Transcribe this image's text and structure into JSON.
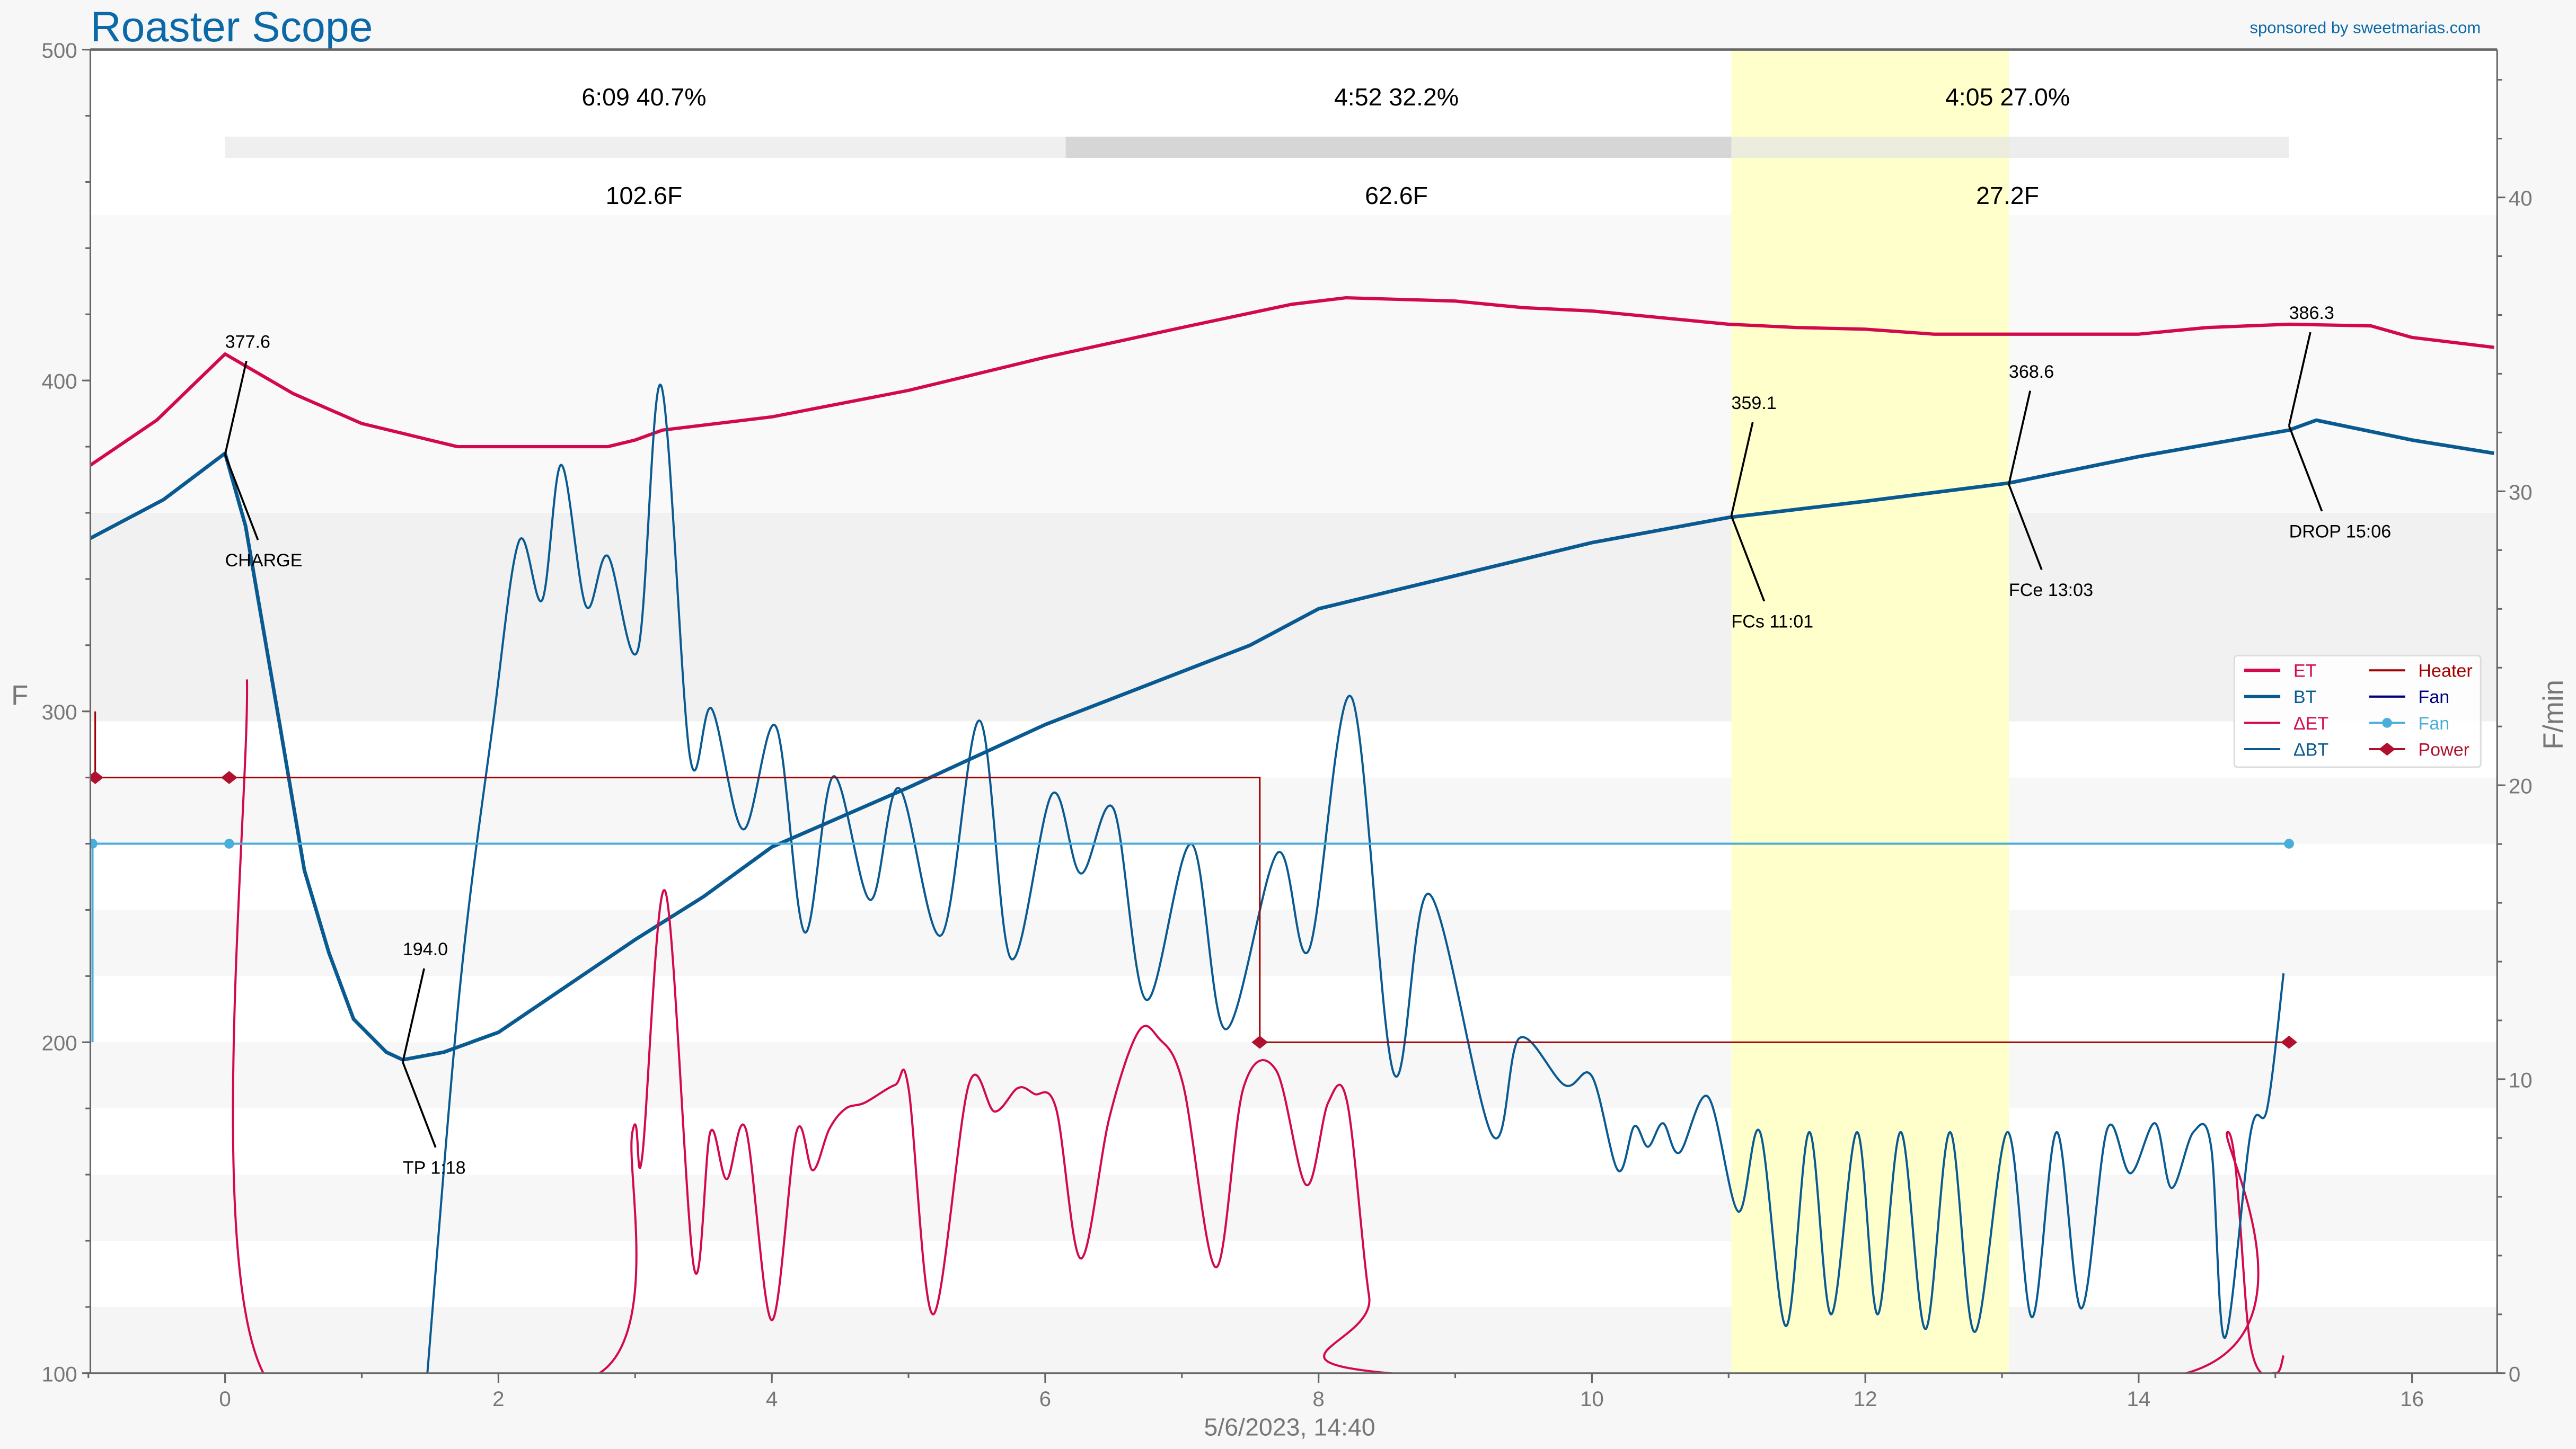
{
  "header": {
    "title": "Roaster Scope",
    "sponsor": "sponsored by sweetmarias.com"
  },
  "colors": {
    "title": "#0b69a8",
    "et": "#d20a4c",
    "bt": "#0a5a92",
    "delta_et": "#d20a4c",
    "delta_bt": "#0a5a92",
    "heater": "#a30000",
    "fan_line": "#00007f",
    "fan_marker": "#4aaed8",
    "power": "#b0102e",
    "fc_band": "#ffffcc"
  },
  "phases": [
    {
      "time": "6:09",
      "percent": "40.7%",
      "label": "6:09  40.7%",
      "temp_rise": "102.6F",
      "start": 0,
      "end": 6.15
    },
    {
      "time": "4:52",
      "percent": "32.2%",
      "label": "4:52  32.2%",
      "temp_rise": "62.6F",
      "start": 6.15,
      "end": 11.02
    },
    {
      "time": "4:05",
      "percent": "27.0%",
      "label": "4:05  27.0%",
      "temp_rise": "27.2F",
      "start": 11.02,
      "end": 15.1
    }
  ],
  "chart_data": {
    "type": "line",
    "xlabel": "5/6/2023, 14:40",
    "ylabel": "F",
    "y2label": "F/min",
    "xlim": [
      -1,
      16.6
    ],
    "ylim": [
      100,
      500
    ],
    "y2lim": [
      0,
      45
    ],
    "xticks": [
      0,
      2,
      4,
      6,
      8,
      10,
      12,
      14,
      16
    ],
    "yticks": [
      100,
      200,
      300,
      400,
      500
    ],
    "y2ticks": [
      0,
      10,
      20,
      30,
      40
    ],
    "grid": false,
    "legend_position": "right",
    "highlight_band": {
      "from": 11.02,
      "to": 13.05
    },
    "legend": [
      {
        "label": "ET",
        "key": "et",
        "style": "thick"
      },
      {
        "label": "BT",
        "key": "bt",
        "style": "thick"
      },
      {
        "label": "ΔET",
        "key": "delta_et",
        "style": "thin"
      },
      {
        "label": "ΔBT",
        "key": "delta_bt",
        "style": "thin"
      },
      {
        "label": "Heater",
        "key": "heater",
        "style": "thin"
      },
      {
        "label": "Fan",
        "key": "fan_line",
        "style": "thin"
      },
      {
        "label": "Fan",
        "key": "fan_marker",
        "style": "dot"
      },
      {
        "label": "Power",
        "key": "power",
        "style": "diamond"
      }
    ],
    "series": [
      {
        "name": "ET",
        "axis": "left",
        "points": [
          [
            -1,
            374
          ],
          [
            -0.5,
            388
          ],
          [
            0,
            408
          ],
          [
            0.5,
            396
          ],
          [
            1,
            387
          ],
          [
            1.5,
            382
          ],
          [
            1.7,
            380
          ],
          [
            2.8,
            380
          ],
          [
            3,
            382
          ],
          [
            3.2,
            385
          ],
          [
            4,
            389
          ],
          [
            5,
            397
          ],
          [
            6,
            407
          ],
          [
            7,
            416
          ],
          [
            7.8,
            423
          ],
          [
            8.2,
            425
          ],
          [
            9,
            424
          ],
          [
            9.5,
            422
          ],
          [
            10,
            421
          ],
          [
            10.5,
            419
          ],
          [
            11,
            417
          ],
          [
            11.5,
            416
          ],
          [
            12,
            415.5
          ],
          [
            12.5,
            414
          ],
          [
            14,
            414
          ],
          [
            14.5,
            416
          ],
          [
            15.1,
            417
          ],
          [
            15.7,
            416.5
          ],
          [
            16,
            413
          ],
          [
            16.6,
            410
          ]
        ]
      },
      {
        "name": "BT",
        "axis": "left",
        "points": [
          [
            -1,
            352
          ],
          [
            -0.45,
            364
          ],
          [
            0,
            378
          ],
          [
            0.15,
            356
          ],
          [
            0.4,
            296
          ],
          [
            0.58,
            252
          ],
          [
            0.76,
            227
          ],
          [
            0.94,
            207
          ],
          [
            1.18,
            197
          ],
          [
            1.3,
            194.7
          ],
          [
            1.6,
            197
          ],
          [
            2,
            203
          ],
          [
            2.5,
            217
          ],
          [
            3,
            231
          ],
          [
            3.5,
            244
          ],
          [
            4,
            259
          ],
          [
            5,
            277
          ],
          [
            6,
            296
          ],
          [
            7.5,
            320
          ],
          [
            8,
            331
          ],
          [
            9,
            341
          ],
          [
            10,
            351
          ],
          [
            11,
            358.6
          ],
          [
            12,
            363.5
          ],
          [
            13.05,
            369
          ],
          [
            14,
            377
          ],
          [
            15.1,
            385
          ],
          [
            15.3,
            388
          ],
          [
            16,
            382
          ],
          [
            16.6,
            378
          ]
        ]
      },
      {
        "name": "ΔET",
        "axis": "right",
        "smooth": true,
        "points": [
          [
            0.16,
            23.6
          ],
          [
            0.28,
            0
          ],
          [
            2.74,
            0
          ],
          [
            2.98,
            8.2
          ],
          [
            3.05,
            7.3
          ],
          [
            3.22,
            16.4
          ],
          [
            3.43,
            3.6
          ],
          [
            3.55,
            8.2
          ],
          [
            3.67,
            6.6
          ],
          [
            3.81,
            8.3
          ],
          [
            4.0,
            1.8
          ],
          [
            4.18,
            8.2
          ],
          [
            4.3,
            6.9
          ],
          [
            4.42,
            8.3
          ],
          [
            4.54,
            9.0
          ],
          [
            4.68,
            9.2
          ],
          [
            4.9,
            9.8
          ],
          [
            5.0,
            9.7
          ],
          [
            5.18,
            2.0
          ],
          [
            5.44,
            9.8
          ],
          [
            5.63,
            8.9
          ],
          [
            5.8,
            9.7
          ],
          [
            5.92,
            9.5
          ],
          [
            6.08,
            9.0
          ],
          [
            6.26,
            3.9
          ],
          [
            6.47,
            8.7
          ],
          [
            6.68,
            11.6
          ],
          [
            6.83,
            11.4
          ],
          [
            7.01,
            9.8
          ],
          [
            7.25,
            3.6
          ],
          [
            7.45,
            9.7
          ],
          [
            7.69,
            10.3
          ],
          [
            7.91,
            6.4
          ],
          [
            8.07,
            9.2
          ],
          [
            8.21,
            9.2
          ],
          [
            8.37,
            2.6
          ],
          [
            8.51,
            0
          ],
          [
            14.35,
            0
          ],
          [
            14.65,
            8.2
          ],
          [
            14.82,
            0.9
          ],
          [
            15.0,
            0
          ],
          [
            15.06,
            0.6
          ]
        ]
      },
      {
        "name": "ΔBT",
        "axis": "right",
        "smooth": true,
        "points": [
          [
            1.48,
            0
          ],
          [
            1.72,
            13.2
          ],
          [
            1.96,
            22.1
          ],
          [
            2.15,
            28.3
          ],
          [
            2.32,
            26.3
          ],
          [
            2.46,
            30.9
          ],
          [
            2.64,
            26.1
          ],
          [
            2.8,
            27.8
          ],
          [
            3.02,
            24.6
          ],
          [
            3.19,
            33.6
          ],
          [
            3.4,
            21.0
          ],
          [
            3.56,
            22.6
          ],
          [
            3.79,
            18.5
          ],
          [
            4.03,
            22.0
          ],
          [
            4.24,
            15.0
          ],
          [
            4.45,
            20.3
          ],
          [
            4.72,
            16.1
          ],
          [
            4.93,
            19.9
          ],
          [
            5.24,
            14.9
          ],
          [
            5.52,
            22.2
          ],
          [
            5.75,
            14.1
          ],
          [
            6.05,
            19.7
          ],
          [
            6.26,
            17.0
          ],
          [
            6.5,
            19.2
          ],
          [
            6.74,
            12.7
          ],
          [
            7.07,
            18.0
          ],
          [
            7.32,
            11.7
          ],
          [
            7.7,
            17.7
          ],
          [
            7.93,
            14.4
          ],
          [
            8.24,
            23.0
          ],
          [
            8.55,
            10.2
          ],
          [
            8.81,
            16.3
          ],
          [
            9.27,
            8.1
          ],
          [
            9.47,
            11.4
          ],
          [
            9.8,
            9.8
          ],
          [
            10.0,
            10.1
          ],
          [
            10.19,
            6.9
          ],
          [
            10.31,
            8.4
          ],
          [
            10.41,
            7.7
          ],
          [
            10.52,
            8.5
          ],
          [
            10.64,
            7.5
          ],
          [
            10.85,
            9.4
          ],
          [
            11.07,
            5.5
          ],
          [
            11.23,
            8.2
          ],
          [
            11.42,
            1.6
          ],
          [
            11.59,
            8.2
          ],
          [
            11.75,
            2.0
          ],
          [
            11.94,
            8.2
          ],
          [
            12.09,
            2.0
          ],
          [
            12.26,
            8.2
          ],
          [
            12.44,
            1.5
          ],
          [
            12.62,
            8.2
          ],
          [
            12.8,
            1.4
          ],
          [
            13.04,
            8.2
          ],
          [
            13.22,
            1.9
          ],
          [
            13.4,
            8.2
          ],
          [
            13.58,
            2.2
          ],
          [
            13.77,
            8.3
          ],
          [
            13.94,
            6.8
          ],
          [
            14.12,
            8.5
          ],
          [
            14.24,
            6.3
          ],
          [
            14.4,
            8.2
          ],
          [
            14.53,
            7.7
          ],
          [
            14.63,
            1.2
          ],
          [
            14.82,
            8.2
          ],
          [
            14.94,
            9.0
          ],
          [
            15.06,
            13.6
          ]
        ]
      },
      {
        "name": "Heater",
        "axis": "left",
        "step": true,
        "points": [
          [
            -0.95,
            300
          ],
          [
            -0.95,
            280
          ],
          [
            7.57,
            280
          ],
          [
            7.57,
            200
          ],
          [
            15.1,
            200
          ]
        ]
      },
      {
        "name": "Fan",
        "axis": "left",
        "points": [
          [
            -0.97,
            200
          ],
          [
            -0.97,
            260
          ],
          [
            15.1,
            260
          ]
        ],
        "markers": [
          [
            -0.97,
            260
          ],
          [
            0.03,
            260
          ],
          [
            15.1,
            260
          ]
        ]
      },
      {
        "name": "Power",
        "axis": "left",
        "markers": [
          [
            -0.95,
            280
          ],
          [
            0.03,
            280
          ],
          [
            7.57,
            200
          ],
          [
            15.1,
            200
          ]
        ]
      }
    ],
    "annotations": [
      {
        "value": "377.6",
        "event": "CHARGE",
        "t": 0,
        "temp": 377.6
      },
      {
        "value": "194.0",
        "event": "TP 1:18",
        "t": 1.3,
        "temp": 194.0
      },
      {
        "value": "359.1",
        "event": "FCs 11:01",
        "t": 11.02,
        "temp": 359.1
      },
      {
        "value": "368.6",
        "event": "FCe 13:03",
        "t": 13.05,
        "temp": 368.6
      },
      {
        "value": "386.3",
        "event": "DROP 15:06",
        "t": 15.1,
        "temp": 386.3
      }
    ]
  }
}
